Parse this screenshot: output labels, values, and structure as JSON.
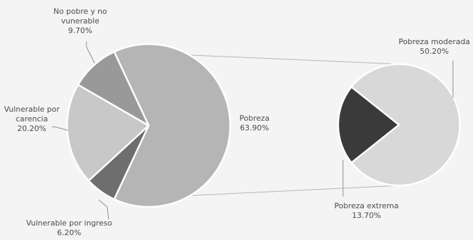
{
  "chart_data": {
    "type": "pie",
    "variant": "pie-of-pie",
    "title": "",
    "primary": {
      "slices": [
        {
          "label_lines": [
            "Pobreza",
            "63.90%"
          ],
          "value": 63.9,
          "color": "#b5b5b5"
        },
        {
          "label_lines": [
            "Vulnerable por ingreso",
            "6.20%"
          ],
          "value": 6.2,
          "color": "#6e6e6e"
        },
        {
          "label_lines": [
            "Vulnerable por",
            "carencia",
            "20.20%"
          ],
          "value": 20.2,
          "color": "#c8c8c8"
        },
        {
          "label_lines": [
            "No pobre y no",
            "vunerable",
            "9.70%"
          ],
          "value": 9.7,
          "color": "#999999"
        }
      ]
    },
    "secondary": {
      "breaks_down": "Pobreza",
      "slices": [
        {
          "label_lines": [
            "Pobreza moderada",
            "50.20%"
          ],
          "value": 50.2,
          "color": "#d8d8d8"
        },
        {
          "label_lines": [
            "Pobreza extrema",
            "13.70%"
          ],
          "value": 13.7,
          "color": "#3a3a3a"
        }
      ]
    },
    "legend": "none",
    "grid": false
  }
}
